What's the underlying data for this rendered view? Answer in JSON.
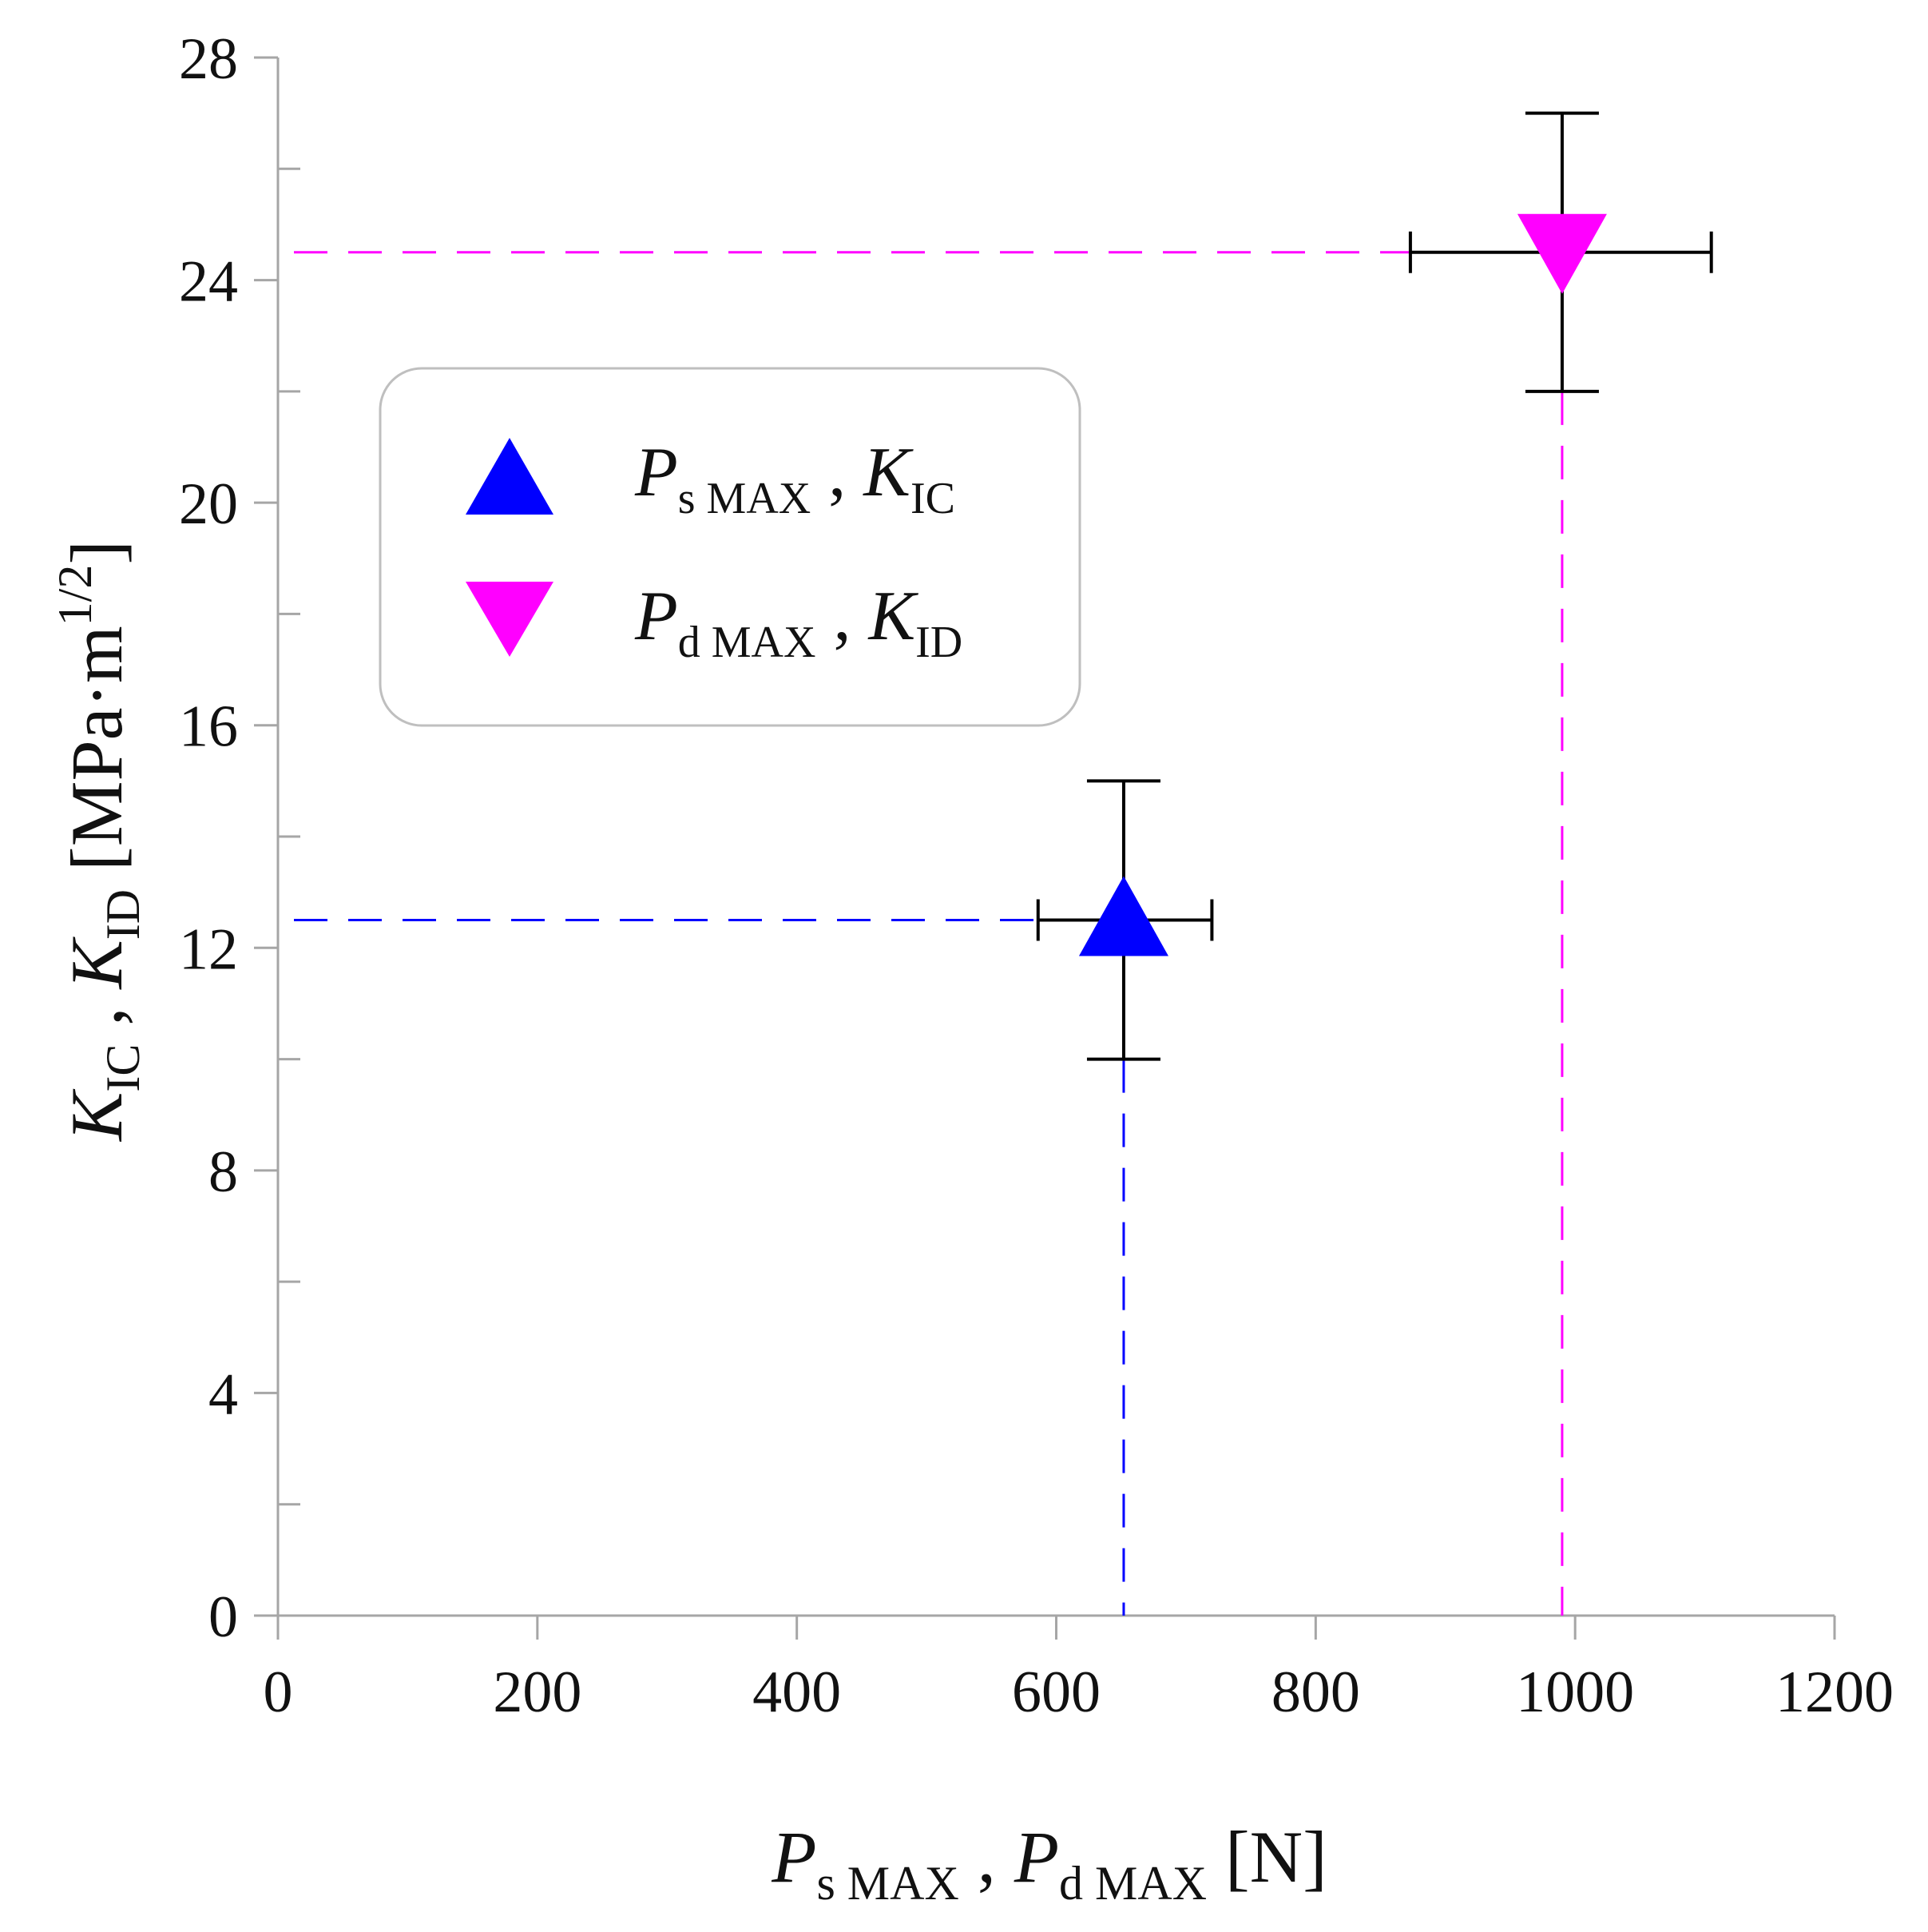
{
  "chart_data": {
    "type": "scatter",
    "title": "",
    "xlim": [
      0,
      1200
    ],
    "ylim": [
      0,
      28
    ],
    "x_ticks": [
      0,
      200,
      400,
      600,
      800,
      1000,
      1200
    ],
    "x_tick_labels": [
      "0",
      "200",
      "400",
      "600",
      "800",
      "1000",
      "1200"
    ],
    "y_ticks": [
      0,
      4,
      8,
      12,
      16,
      20,
      24,
      28
    ],
    "y_tick_labels": [
      "0",
      "4",
      "8",
      "12",
      "16",
      "20",
      "24",
      "28"
    ],
    "y_minor_ticks": [
      2,
      6,
      10,
      14,
      18,
      22,
      26
    ],
    "grid": false,
    "legend_position": "upper-left",
    "xlabel": {
      "p": "P",
      "s_sub": "s MAX",
      "comma": " , ",
      "p2": "P",
      "d_sub": "d MAX",
      "unit": " [N]"
    },
    "ylabel": {
      "k": "K",
      "ic_sub": "IC",
      "comma": " , ",
      "k2": "K",
      "id_sub": "ID",
      "unit": " [MPa·m",
      "exp": "1/2",
      "close": "]"
    },
    "series": [
      {
        "name": "Ps MAX , KIC",
        "legend": {
          "p": "P",
          "p_sub": "s MAX",
          "comma": " , ",
          "k": "K",
          "k_sub": "IC"
        },
        "marker": "triangle-up",
        "color": "#0000ff",
        "x": 652,
        "y": 12.5,
        "x_err": [
          586,
          720
        ],
        "y_err": [
          10.0,
          15.0
        ]
      },
      {
        "name": "Pd MAX , KID",
        "legend": {
          "p": "P",
          "p_sub": "d MAX",
          "comma": " , ",
          "k": "K",
          "k_sub": "ID"
        },
        "marker": "triangle-down",
        "color": "#ff00ff",
        "x": 990,
        "y": 24.5,
        "x_err": [
          873,
          1105
        ],
        "y_err": [
          22.0,
          27.0
        ]
      }
    ]
  }
}
